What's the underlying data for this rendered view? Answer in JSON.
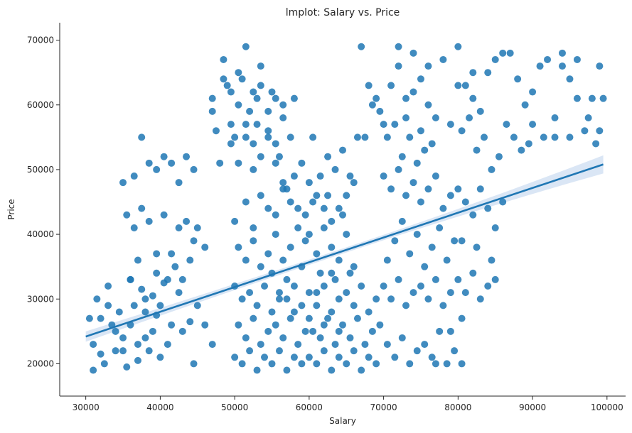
{
  "chart_data": {
    "type": "scatter",
    "title": "lmplot: Salary vs. Price",
    "xlabel": "Salary",
    "ylabel": "Price",
    "xlim": [
      26500,
      102500
    ],
    "ylim": [
      15000,
      72700
    ],
    "x_ticks": [
      30000,
      40000,
      50000,
      60000,
      70000,
      80000,
      90000,
      100000
    ],
    "y_ticks": [
      20000,
      30000,
      40000,
      50000,
      60000,
      70000
    ],
    "x_tick_labels": [
      "30000",
      "40000",
      "50000",
      "60000",
      "70000",
      "80000",
      "90000",
      "100000"
    ],
    "y_tick_labels": [
      "20000",
      "30000",
      "40000",
      "50000",
      "60000",
      "70000"
    ],
    "grid": false,
    "point_color": "#1f77b4",
    "regression": {
      "x": [
        30000,
        99500
      ],
      "y": [
        24200,
        50800
      ],
      "ci_half_width_start": 800,
      "ci_half_width_mid": 400,
      "ci_half_width_end": 1400,
      "band_color": "#aec7e8"
    },
    "points": [
      [
        31000,
        19000
      ],
      [
        32000,
        21500
      ],
      [
        33500,
        26000
      ],
      [
        35000,
        22000
      ],
      [
        36500,
        29000
      ],
      [
        38000,
        24000
      ],
      [
        39500,
        27500
      ],
      [
        41000,
        23000
      ],
      [
        42500,
        31000
      ],
      [
        44000,
        26500
      ],
      [
        30500,
        27000
      ],
      [
        31500,
        30000
      ],
      [
        33000,
        32000
      ],
      [
        34500,
        28000
      ],
      [
        36000,
        33000
      ],
      [
        37500,
        31500
      ],
      [
        39000,
        30500
      ],
      [
        40500,
        32500
      ],
      [
        43000,
        25000
      ],
      [
        45000,
        29000
      ],
      [
        32500,
        20000
      ],
      [
        34000,
        25000
      ],
      [
        35500,
        19500
      ],
      [
        37000,
        20500
      ],
      [
        38500,
        22000
      ],
      [
        40000,
        21000
      ],
      [
        41500,
        26000
      ],
      [
        44500,
        20000
      ],
      [
        46000,
        26000
      ],
      [
        47000,
        23000
      ],
      [
        35000,
        48000
      ],
      [
        36500,
        49000
      ],
      [
        37500,
        55000
      ],
      [
        38500,
        51000
      ],
      [
        39500,
        50000
      ],
      [
        40500,
        52000
      ],
      [
        41500,
        51000
      ],
      [
        42500,
        48000
      ],
      [
        43500,
        52000
      ],
      [
        44500,
        50000
      ],
      [
        35500,
        43000
      ],
      [
        36500,
        41000
      ],
      [
        37500,
        44000
      ],
      [
        38500,
        42000
      ],
      [
        39500,
        37000
      ],
      [
        40500,
        43000
      ],
      [
        41500,
        37000
      ],
      [
        42500,
        41000
      ],
      [
        43500,
        42000
      ],
      [
        44500,
        39000
      ],
      [
        36000,
        33000
      ],
      [
        37000,
        36000
      ],
      [
        38000,
        30000
      ],
      [
        39500,
        34000
      ],
      [
        41000,
        33000
      ],
      [
        42000,
        35000
      ],
      [
        43000,
        33000
      ],
      [
        44000,
        36000
      ],
      [
        45000,
        41000
      ],
      [
        46000,
        38000
      ],
      [
        47000,
        61000
      ],
      [
        48500,
        64000
      ],
      [
        49500,
        62000
      ],
      [
        50500,
        65000
      ],
      [
        51500,
        69000
      ],
      [
        52500,
        62000
      ],
      [
        53500,
        63000
      ],
      [
        54500,
        56000
      ],
      [
        55500,
        61000
      ],
      [
        56500,
        58000
      ],
      [
        47500,
        56000
      ],
      [
        48500,
        67000
      ],
      [
        49500,
        57000
      ],
      [
        50500,
        60000
      ],
      [
        51500,
        57000
      ],
      [
        52500,
        54000
      ],
      [
        53500,
        66000
      ],
      [
        54500,
        59000
      ],
      [
        55500,
        54000
      ],
      [
        56500,
        60000
      ],
      [
        48000,
        51000
      ],
      [
        49500,
        54000
      ],
      [
        50500,
        51000
      ],
      [
        51500,
        55000
      ],
      [
        52500,
        50000
      ],
      [
        53500,
        52000
      ],
      [
        54500,
        55000
      ],
      [
        55500,
        51000
      ],
      [
        56500,
        48000
      ],
      [
        57500,
        55000
      ],
      [
        50000,
        42000
      ],
      [
        51500,
        45000
      ],
      [
        52500,
        41000
      ],
      [
        53500,
        46000
      ],
      [
        54500,
        44000
      ],
      [
        55500,
        43000
      ],
      [
        56500,
        47000
      ],
      [
        57500,
        45000
      ],
      [
        58500,
        44000
      ],
      [
        59500,
        43000
      ],
      [
        50500,
        38000
      ],
      [
        51500,
        36000
      ],
      [
        52500,
        39000
      ],
      [
        53500,
        35000
      ],
      [
        54500,
        37000
      ],
      [
        55500,
        40000
      ],
      [
        56500,
        36000
      ],
      [
        57500,
        38000
      ],
      [
        58500,
        41000
      ],
      [
        59500,
        39000
      ],
      [
        50000,
        32000
      ],
      [
        51000,
        30000
      ],
      [
        52000,
        31000
      ],
      [
        53000,
        29000
      ],
      [
        54000,
        32000
      ],
      [
        55000,
        28000
      ],
      [
        56000,
        31000
      ],
      [
        57000,
        30000
      ],
      [
        58000,
        32000
      ],
      [
        59000,
        29000
      ],
      [
        50500,
        26000
      ],
      [
        51500,
        24000
      ],
      [
        52500,
        27000
      ],
      [
        53500,
        23000
      ],
      [
        54500,
        25000
      ],
      [
        55500,
        26000
      ],
      [
        56500,
        24000
      ],
      [
        57500,
        27000
      ],
      [
        58500,
        23000
      ],
      [
        59500,
        25000
      ],
      [
        50000,
        21000
      ],
      [
        51000,
        20000
      ],
      [
        52000,
        22000
      ],
      [
        53000,
        19000
      ],
      [
        54000,
        21000
      ],
      [
        55000,
        20000
      ],
      [
        56000,
        22000
      ],
      [
        57000,
        19000
      ],
      [
        58000,
        21000
      ],
      [
        59000,
        20000
      ],
      [
        60000,
        31000
      ],
      [
        61000,
        29000
      ],
      [
        62000,
        32000
      ],
      [
        63000,
        28000
      ],
      [
        64000,
        30000
      ],
      [
        65000,
        31000
      ],
      [
        66000,
        29000
      ],
      [
        67000,
        32000
      ],
      [
        68000,
        28000
      ],
      [
        69000,
        30000
      ],
      [
        60500,
        25000
      ],
      [
        61500,
        24000
      ],
      [
        62500,
        27000
      ],
      [
        63500,
        23000
      ],
      [
        64500,
        26000
      ],
      [
        65500,
        24000
      ],
      [
        66500,
        27000
      ],
      [
        67500,
        23000
      ],
      [
        68500,
        25000
      ],
      [
        69500,
        26000
      ],
      [
        60000,
        21000
      ],
      [
        61000,
        20000
      ],
      [
        62000,
        22000
      ],
      [
        63000,
        19000
      ],
      [
        64000,
        21000
      ],
      [
        65000,
        20000
      ],
      [
        66000,
        22000
      ],
      [
        67000,
        19000
      ],
      [
        68000,
        21000
      ],
      [
        69000,
        20000
      ],
      [
        60500,
        55000
      ],
      [
        61500,
        49000
      ],
      [
        62500,
        52000
      ],
      [
        63500,
        50000
      ],
      [
        64500,
        53000
      ],
      [
        65500,
        49000
      ],
      [
        66500,
        55000
      ],
      [
        60500,
        45000
      ],
      [
        62500,
        46000
      ],
      [
        64500,
        43000
      ],
      [
        60000,
        40000
      ],
      [
        61000,
        37000
      ],
      [
        62000,
        41000
      ],
      [
        63000,
        38000
      ],
      [
        64000,
        36000
      ],
      [
        65000,
        40000
      ],
      [
        66000,
        35000
      ],
      [
        61500,
        34000
      ],
      [
        63500,
        33000
      ],
      [
        65500,
        34000
      ],
      [
        67000,
        69000
      ],
      [
        68000,
        63000
      ],
      [
        69000,
        61000
      ],
      [
        70000,
        57000
      ],
      [
        71000,
        63000
      ],
      [
        72000,
        66000
      ],
      [
        73000,
        61000
      ],
      [
        74000,
        62000
      ],
      [
        75000,
        64000
      ],
      [
        76000,
        60000
      ],
      [
        67500,
        55000
      ],
      [
        68500,
        60000
      ],
      [
        69500,
        59000
      ],
      [
        70500,
        55000
      ],
      [
        71500,
        57000
      ],
      [
        72500,
        52000
      ],
      [
        73500,
        55000
      ],
      [
        74500,
        51000
      ],
      [
        75500,
        53000
      ],
      [
        76500,
        54000
      ],
      [
        70000,
        49000
      ],
      [
        71000,
        47000
      ],
      [
        72000,
        50000
      ],
      [
        73000,
        46000
      ],
      [
        74000,
        48000
      ],
      [
        75000,
        45000
      ],
      [
        76000,
        47000
      ],
      [
        77000,
        49000
      ],
      [
        78000,
        44000
      ],
      [
        79000,
        46000
      ],
      [
        70500,
        36000
      ],
      [
        71500,
        39000
      ],
      [
        72500,
        42000
      ],
      [
        73500,
        37000
      ],
      [
        74500,
        40000
      ],
      [
        75500,
        35000
      ],
      [
        76500,
        38000
      ],
      [
        77500,
        41000
      ],
      [
        78500,
        36000
      ],
      [
        79500,
        39000
      ],
      [
        70000,
        32000
      ],
      [
        71000,
        30000
      ],
      [
        72000,
        33000
      ],
      [
        73000,
        29000
      ],
      [
        74000,
        31000
      ],
      [
        75000,
        32000
      ],
      [
        76000,
        30000
      ],
      [
        77000,
        33000
      ],
      [
        78000,
        29000
      ],
      [
        79000,
        31000
      ],
      [
        70500,
        23000
      ],
      [
        71500,
        21000
      ],
      [
        72500,
        24000
      ],
      [
        73500,
        20000
      ],
      [
        74500,
        22000
      ],
      [
        75500,
        23000
      ],
      [
        76500,
        21000
      ],
      [
        77500,
        25000
      ],
      [
        78500,
        20000
      ],
      [
        79500,
        22000
      ],
      [
        80000,
        69000
      ],
      [
        81000,
        63000
      ],
      [
        82000,
        61000
      ],
      [
        83000,
        59000
      ],
      [
        84000,
        65000
      ],
      [
        85000,
        67000
      ],
      [
        86000,
        68000
      ],
      [
        87000,
        68000
      ],
      [
        88000,
        64000
      ],
      [
        89000,
        60000
      ],
      [
        90000,
        62000
      ],
      [
        91000,
        66000
      ],
      [
        92000,
        67000
      ],
      [
        93000,
        58000
      ],
      [
        94000,
        68000
      ],
      [
        95000,
        64000
      ],
      [
        96000,
        67000
      ],
      [
        97000,
        56000
      ],
      [
        98000,
        61000
      ],
      [
        99000,
        66000
      ],
      [
        80500,
        56000
      ],
      [
        81500,
        58000
      ],
      [
        82500,
        53000
      ],
      [
        83500,
        55000
      ],
      [
        84500,
        50000
      ],
      [
        85500,
        52000
      ],
      [
        86500,
        57000
      ],
      [
        87500,
        55000
      ],
      [
        88500,
        53000
      ],
      [
        89500,
        54000
      ],
      [
        80000,
        47000
      ],
      [
        81000,
        45000
      ],
      [
        82000,
        43000
      ],
      [
        83000,
        47000
      ],
      [
        84000,
        44000
      ],
      [
        85000,
        41000
      ],
      [
        86000,
        45000
      ],
      [
        80500,
        39000
      ],
      [
        82500,
        38000
      ],
      [
        84500,
        36000
      ],
      [
        80000,
        33000
      ],
      [
        81000,
        31000
      ],
      [
        82000,
        34000
      ],
      [
        83000,
        30000
      ],
      [
        84000,
        32000
      ],
      [
        85000,
        33000
      ],
      [
        80500,
        27000
      ],
      [
        79000,
        25000
      ],
      [
        77000,
        20000
      ],
      [
        80500,
        20000
      ],
      [
        90000,
        57000
      ],
      [
        91500,
        55000
      ],
      [
        93000,
        55000
      ],
      [
        95000,
        55000
      ],
      [
        97500,
        58000
      ],
      [
        98500,
        54000
      ],
      [
        99000,
        56000
      ],
      [
        99500,
        61000
      ],
      [
        96000,
        61000
      ],
      [
        94000,
        66000
      ],
      [
        33000,
        29000
      ],
      [
        31000,
        23000
      ],
      [
        32000,
        27000
      ],
      [
        34000,
        22000
      ],
      [
        35000,
        24000
      ],
      [
        36000,
        26000
      ],
      [
        37000,
        23000
      ],
      [
        38000,
        28000
      ],
      [
        39000,
        25000
      ],
      [
        40000,
        29000
      ],
      [
        55000,
        34000
      ],
      [
        56000,
        30000
      ],
      [
        57000,
        33000
      ],
      [
        58000,
        28000
      ],
      [
        59000,
        35000
      ],
      [
        60000,
        27000
      ],
      [
        61000,
        31000
      ],
      [
        62000,
        26000
      ],
      [
        63000,
        34000
      ],
      [
        64000,
        25000
      ],
      [
        53000,
        61000
      ],
      [
        51000,
        64000
      ],
      [
        49000,
        63000
      ],
      [
        52000,
        59000
      ],
      [
        55000,
        62000
      ],
      [
        58000,
        61000
      ],
      [
        47000,
        59000
      ],
      [
        50000,
        55000
      ],
      [
        53000,
        57000
      ],
      [
        56000,
        52000
      ],
      [
        72000,
        69000
      ],
      [
        74000,
        68000
      ],
      [
        76000,
        66000
      ],
      [
        78000,
        67000
      ],
      [
        80000,
        63000
      ],
      [
        82000,
        65000
      ],
      [
        73000,
        58000
      ],
      [
        75000,
        56000
      ],
      [
        77000,
        58000
      ],
      [
        79000,
        57000
      ],
      [
        57000,
        47000
      ],
      [
        58000,
        49000
      ],
      [
        59000,
        51000
      ],
      [
        60000,
        48000
      ],
      [
        61000,
        46000
      ],
      [
        62000,
        44000
      ],
      [
        63000,
        42000
      ],
      [
        64000,
        44000
      ],
      [
        65000,
        46000
      ],
      [
        66000,
        48000
      ]
    ]
  }
}
